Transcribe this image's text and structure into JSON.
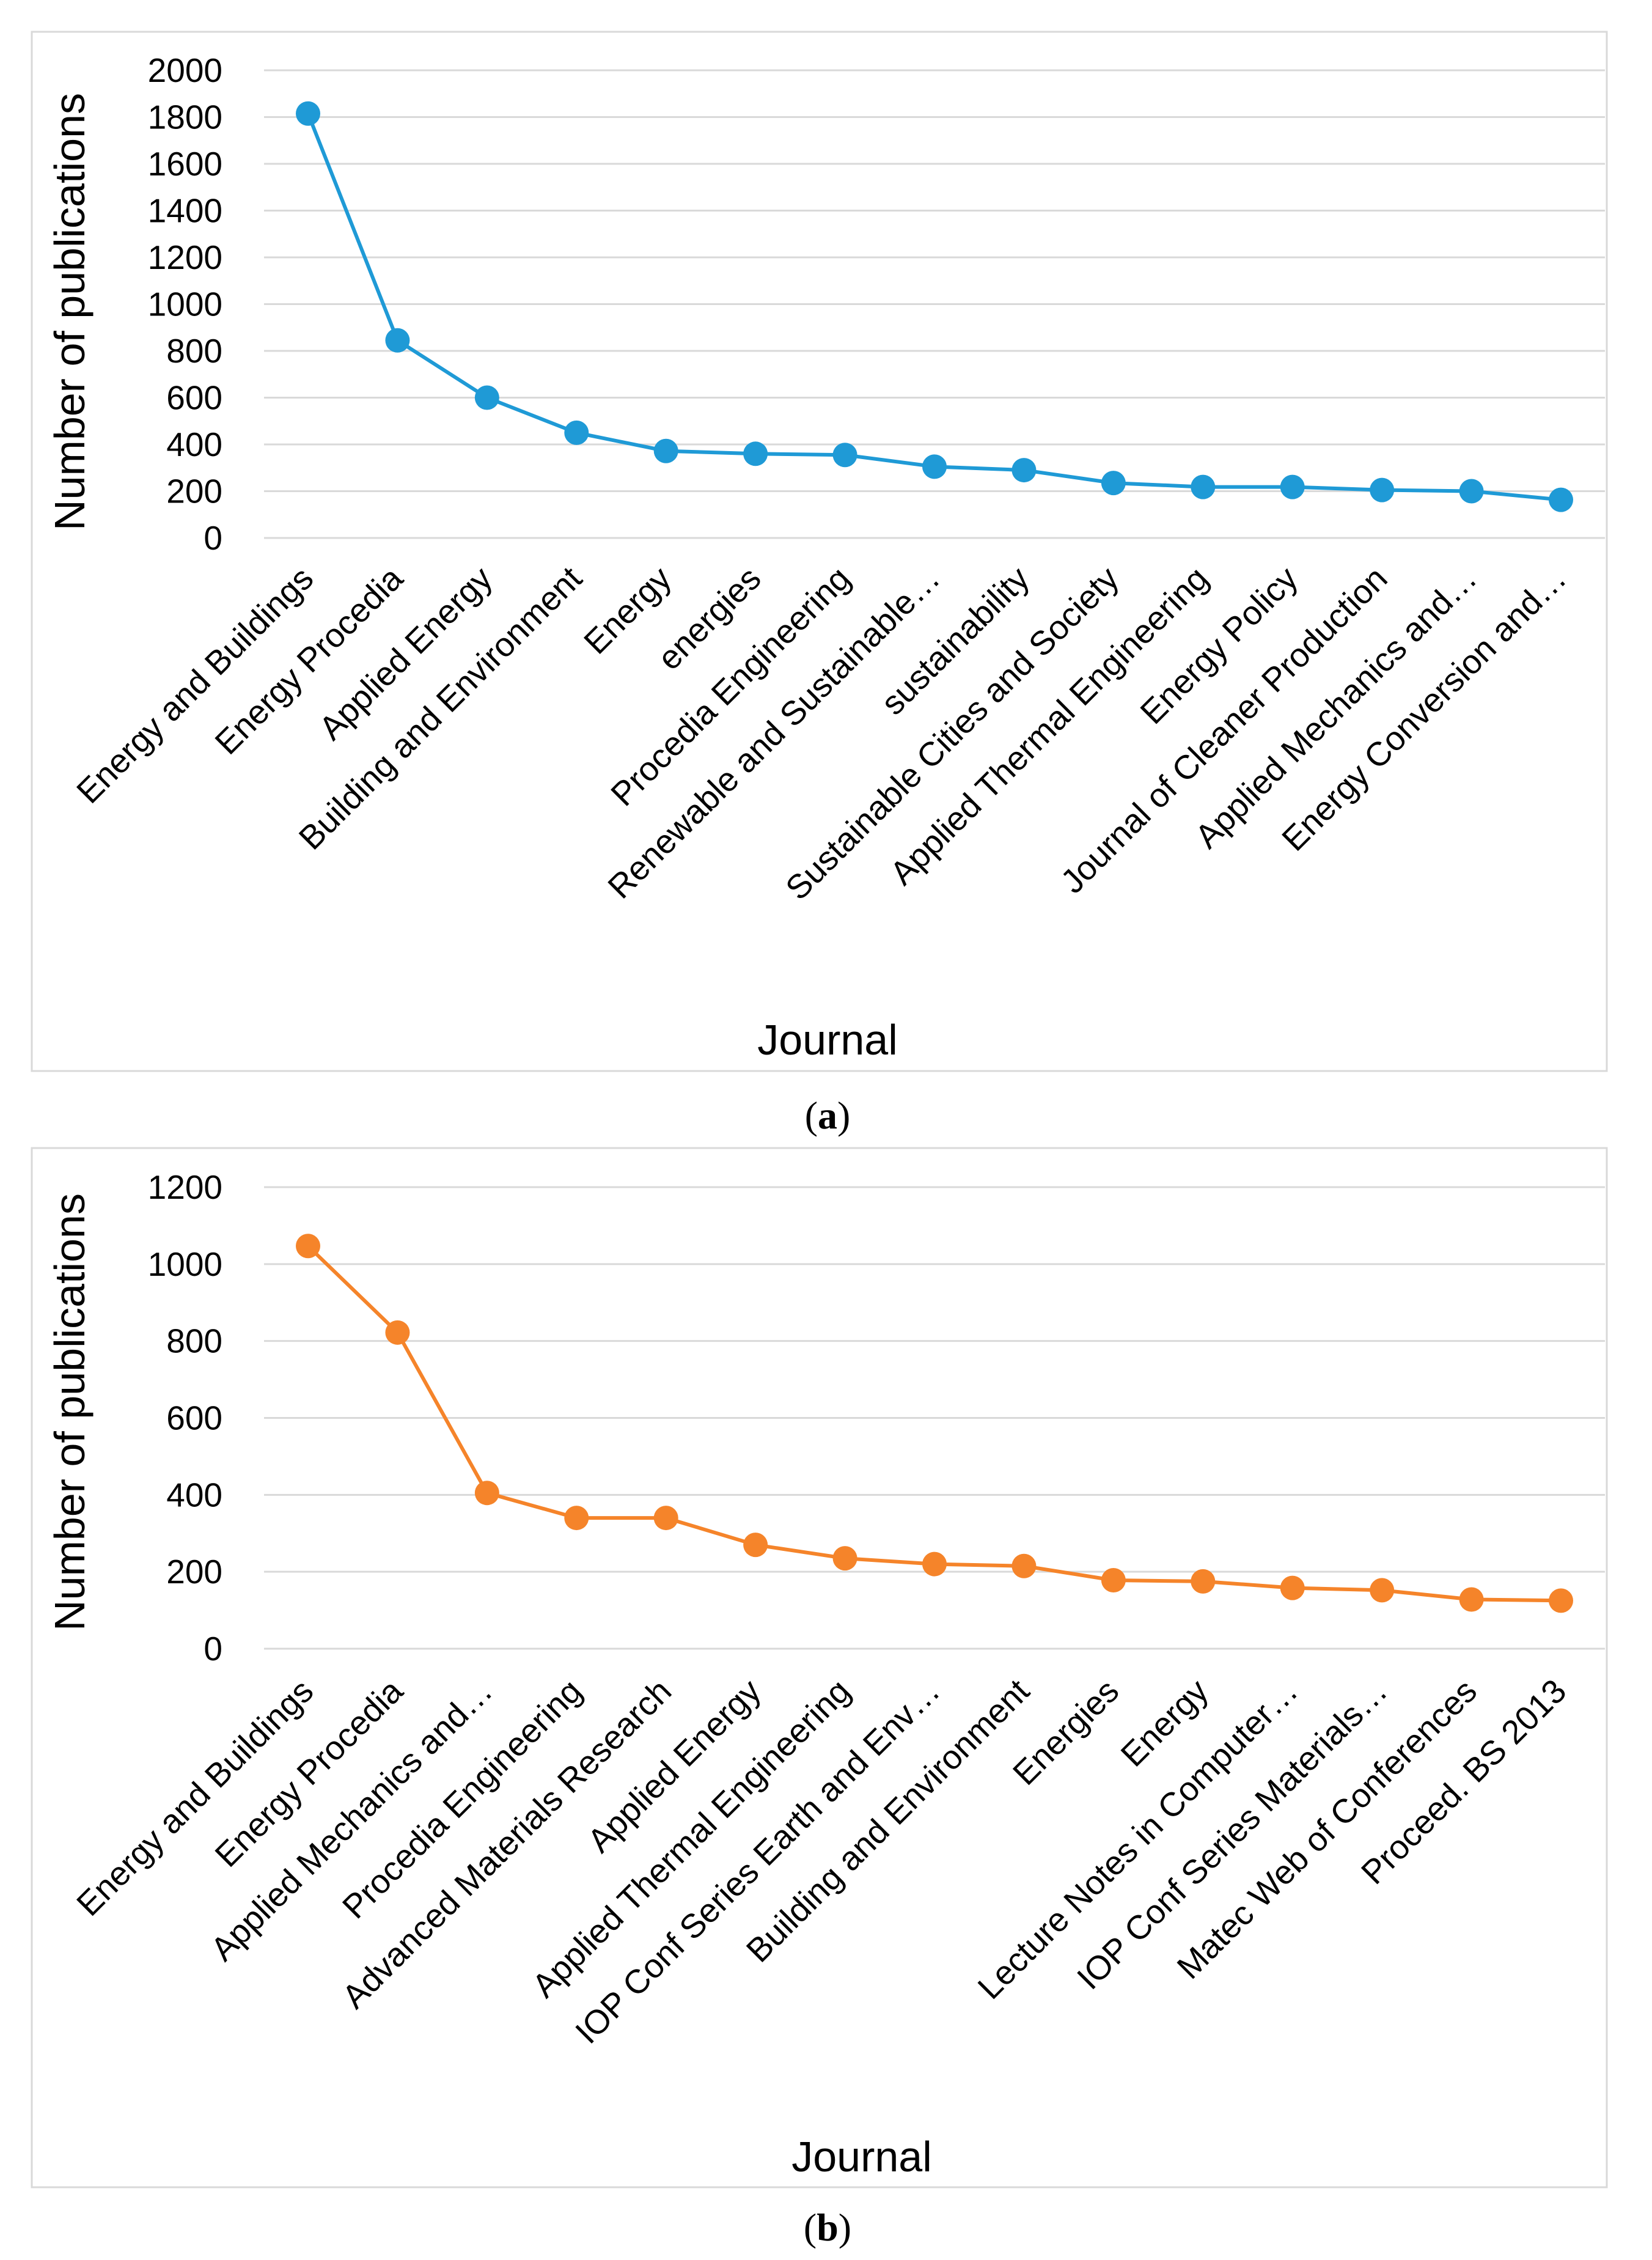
{
  "chart_data": [
    {
      "type": "line",
      "title": "",
      "caption_letter": "a",
      "xlabel": "Journal",
      "ylabel": "Number of publications",
      "ylim": [
        0,
        2000
      ],
      "yticks": [
        0,
        200,
        400,
        600,
        800,
        1000,
        1200,
        1400,
        1600,
        1800,
        2000
      ],
      "grid": true,
      "color": "#1f9ad6",
      "categories": [
        "Energy and Buildings",
        "Energy Procedia",
        "Applied Energy",
        "Building and Environment",
        "Energy",
        "energies",
        "Procedia Engineering",
        "Renewable and Sustainable…",
        "sustainability",
        "Sustainable Cities and Society",
        "Applied Thermal Engineering",
        "Energy Policy",
        "Journal of Cleaner Production",
        "Applied Mechanics and…",
        "Energy Conversion and…"
      ],
      "values": [
        1815,
        845,
        600,
        450,
        372,
        360,
        355,
        305,
        290,
        235,
        218,
        218,
        205,
        200,
        163
      ]
    },
    {
      "type": "line",
      "title": "",
      "caption_letter": "b",
      "xlabel": "Journal",
      "ylabel": "Number of publications",
      "ylim": [
        0,
        1200
      ],
      "yticks": [
        0,
        200,
        400,
        600,
        800,
        1000,
        1200
      ],
      "grid": true,
      "color": "#f5842a",
      "categories": [
        "Energy and Buildings",
        "Energy Procedia",
        "Applied Mechanics and…",
        "Procedia Engineering",
        "Advanced Materials Research",
        "Applied Energy",
        "Applied Thermal Engineering",
        "IOP Conf Series Earth and Env…",
        "Building and Environment",
        "Energies",
        "Energy",
        "Lecture Notes in Computer…",
        "IOP Conf Series Materials…",
        "Matec Web of Conferences",
        "Proceed. BS 2013"
      ],
      "values": [
        1047,
        822,
        405,
        340,
        340,
        270,
        235,
        220,
        215,
        178,
        175,
        158,
        152,
        128,
        125
      ]
    }
  ]
}
